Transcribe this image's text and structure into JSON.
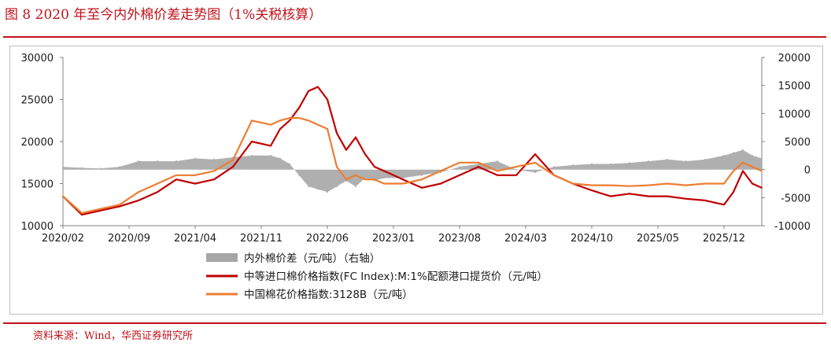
{
  "header": {
    "title": "图 8 2020 年至今内外棉价差走势图（1%关税核算）"
  },
  "footer": {
    "source": "资料来源：Wind，华西证券研究所"
  },
  "colors": {
    "accent": "#c0121b",
    "spread": "#a6a6a6",
    "fc_index": "#c00000",
    "cc_index": "#ed7d31"
  },
  "chart_data": {
    "type": "line",
    "title": "",
    "x_tick_labels": [
      "2020/02",
      "2020/09",
      "2021/04",
      "2021/11",
      "2022/06",
      "2023/01",
      "2023/08",
      "2024/03",
      "2024/10",
      "2025/05",
      "2025/12"
    ],
    "y_left": {
      "ticks": [
        "30000",
        "25000",
        "20000",
        "15000",
        "10000"
      ],
      "range": [
        10000,
        30000
      ]
    },
    "y_right": {
      "ticks": [
        "20000",
        "15000",
        "10000",
        "5000",
        "0",
        "-5000",
        "-10000"
      ],
      "range": [
        -10000,
        20000
      ]
    },
    "x_range_months": [
      "2020/02",
      "2026/04"
    ],
    "series": [
      {
        "name": "内外棉价差（元/吨）（右轴）",
        "type": "area",
        "axis": "right",
        "x": [
          "2020/02",
          "2020/04",
          "2020/06",
          "2020/08",
          "2020/10",
          "2020/12",
          "2021/02",
          "2021/04",
          "2021/06",
          "2021/08",
          "2021/10",
          "2021/12",
          "2022/01",
          "2022/02",
          "2022/03",
          "2022/04",
          "2022/05",
          "2022/06",
          "2022/07",
          "2022/08",
          "2022/09",
          "2022/10",
          "2022/11",
          "2022/12",
          "2023/02",
          "2023/04",
          "2023/06",
          "2023/08",
          "2023/10",
          "2023/12",
          "2024/02",
          "2024/04",
          "2024/06",
          "2024/08",
          "2024/10",
          "2024/12",
          "2025/02",
          "2025/04",
          "2025/06",
          "2025/08",
          "2025/10",
          "2025/12",
          "2026/01",
          "2026/02",
          "2026/03",
          "2026/04"
        ],
        "values": [
          500,
          300,
          200,
          500,
          1500,
          1500,
          1500,
          2000,
          1800,
          2200,
          2500,
          2500,
          2000,
          1000,
          -1000,
          -3000,
          -3500,
          -4000,
          -3000,
          -2000,
          -3000,
          -1500,
          -2000,
          -1500,
          -1500,
          -1000,
          -500,
          500,
          1000,
          1500,
          0,
          -500,
          500,
          800,
          1000,
          1000,
          1200,
          1500,
          1800,
          1500,
          1800,
          2500,
          3000,
          3500,
          2500,
          2000
        ]
      },
      {
        "name": "中等进口棉价格指数(FC Index):M:1%配额港口提货价（元/吨）",
        "type": "line",
        "axis": "left",
        "x": [
          "2020/02",
          "2020/04",
          "2020/06",
          "2020/08",
          "2020/10",
          "2020/12",
          "2021/02",
          "2021/04",
          "2021/06",
          "2021/08",
          "2021/10",
          "2021/12",
          "2022/01",
          "2022/02",
          "2022/03",
          "2022/04",
          "2022/05",
          "2022/06",
          "2022/07",
          "2022/08",
          "2022/09",
          "2022/10",
          "2022/11",
          "2022/12",
          "2023/02",
          "2023/04",
          "2023/06",
          "2023/08",
          "2023/10",
          "2023/12",
          "2024/02",
          "2024/04",
          "2024/06",
          "2024/08",
          "2024/10",
          "2024/12",
          "2025/02",
          "2025/04",
          "2025/06",
          "2025/08",
          "2025/10",
          "2025/12",
          "2026/01",
          "2026/02",
          "2026/03",
          "2026/04"
        ],
        "values": [
          13500,
          11300,
          11800,
          12300,
          13000,
          14000,
          15500,
          15000,
          15500,
          17000,
          20000,
          19500,
          21500,
          22500,
          24000,
          26000,
          26500,
          25000,
          21000,
          19000,
          20500,
          18500,
          17000,
          16500,
          15500,
          14500,
          15000,
          16000,
          17000,
          16000,
          16000,
          18500,
          16000,
          15000,
          14200,
          13500,
          13800,
          13500,
          13500,
          13200,
          13000,
          12500,
          14000,
          16500,
          15000,
          14500
        ]
      },
      {
        "name": "中国棉花价格指数:3128B（元/吨）",
        "type": "line",
        "axis": "left",
        "x": [
          "2020/02",
          "2020/04",
          "2020/06",
          "2020/08",
          "2020/10",
          "2020/12",
          "2021/02",
          "2021/04",
          "2021/06",
          "2021/08",
          "2021/10",
          "2021/12",
          "2022/01",
          "2022/02",
          "2022/03",
          "2022/04",
          "2022/05",
          "2022/06",
          "2022/07",
          "2022/08",
          "2022/09",
          "2022/10",
          "2022/11",
          "2022/12",
          "2023/02",
          "2023/04",
          "2023/06",
          "2023/08",
          "2023/10",
          "2023/12",
          "2024/02",
          "2024/04",
          "2024/06",
          "2024/08",
          "2024/10",
          "2024/12",
          "2025/02",
          "2025/04",
          "2025/06",
          "2025/08",
          "2025/10",
          "2025/12",
          "2026/01",
          "2026/02",
          "2026/03",
          "2026/04"
        ],
        "values": [
          13500,
          11500,
          12000,
          12500,
          14000,
          15000,
          16000,
          16000,
          16500,
          17800,
          22500,
          22000,
          22500,
          22800,
          22800,
          22500,
          22000,
          21500,
          17000,
          15500,
          16000,
          15500,
          15500,
          15000,
          15000,
          15500,
          16500,
          17500,
          17500,
          16500,
          17000,
          17500,
          16000,
          15000,
          14800,
          14800,
          14700,
          14800,
          15000,
          14800,
          15000,
          15000,
          16500,
          17500,
          17000,
          16500
        ]
      }
    ],
    "legend": {
      "placement": "bottom"
    },
    "grid": false
  }
}
